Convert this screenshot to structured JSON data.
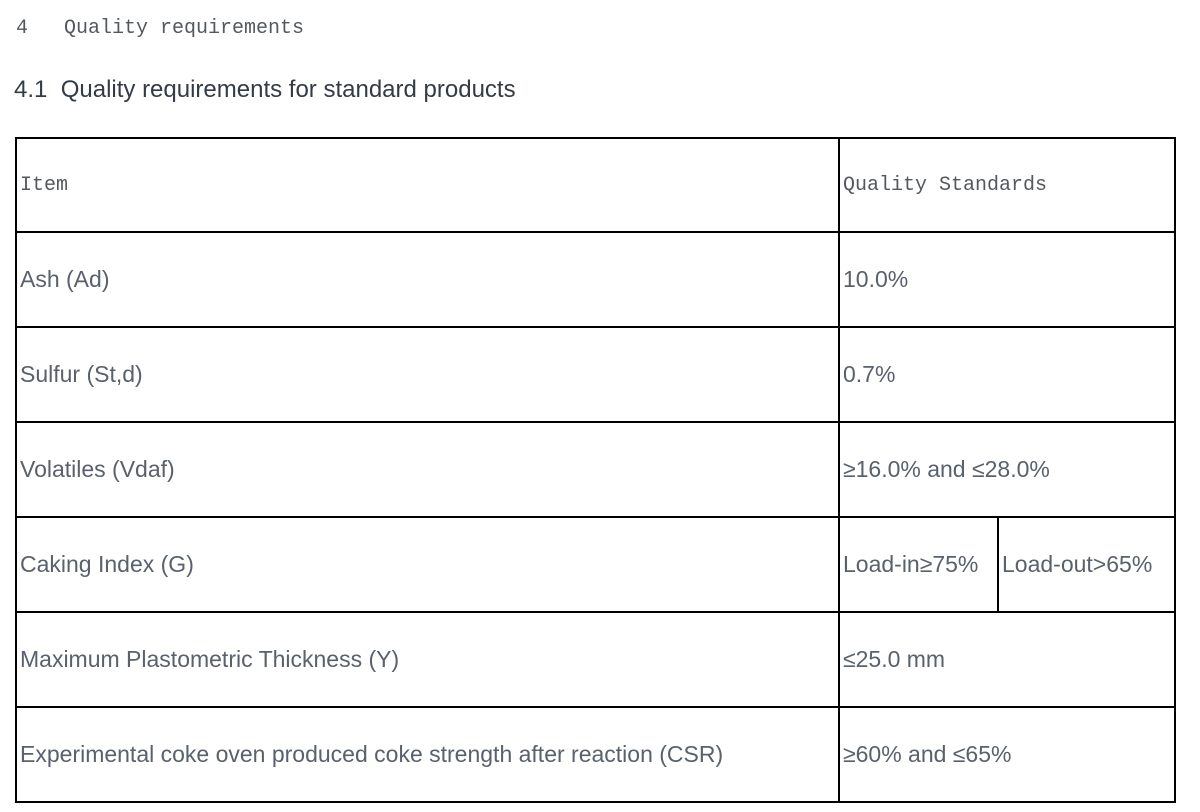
{
  "headings": {
    "section": "4   Quality requirements",
    "subsection": "4.1  Quality requirements for standard products"
  },
  "table": {
    "header": {
      "item": "Item",
      "quality_standards": "Quality Standards"
    },
    "rows": [
      {
        "item": "Ash (Ad)",
        "value": "10.0%"
      },
      {
        "item": "Sulfur (St,d)",
        "value": "0.7%"
      },
      {
        "item": "Volatiles (Vdaf)",
        "value": "≥16.0% and ≤28.0%"
      },
      {
        "item": "Caking Index (G)",
        "load_in": "Load-in≥75%",
        "load_out": "Load-out>65%"
      },
      {
        "item": "Maximum Plastometric Thickness (Y)",
        "value": "≤25.0 mm"
      },
      {
        "item": "Experimental coke oven produced coke strength after reaction (CSR)",
        "value": "≥60% and ≤65%"
      }
    ]
  },
  "colors": {
    "border": "#000000",
    "body_text": "#59616d",
    "header_text": "#54595f",
    "section_text": "#54595f",
    "subsection_text": "#333b46"
  }
}
